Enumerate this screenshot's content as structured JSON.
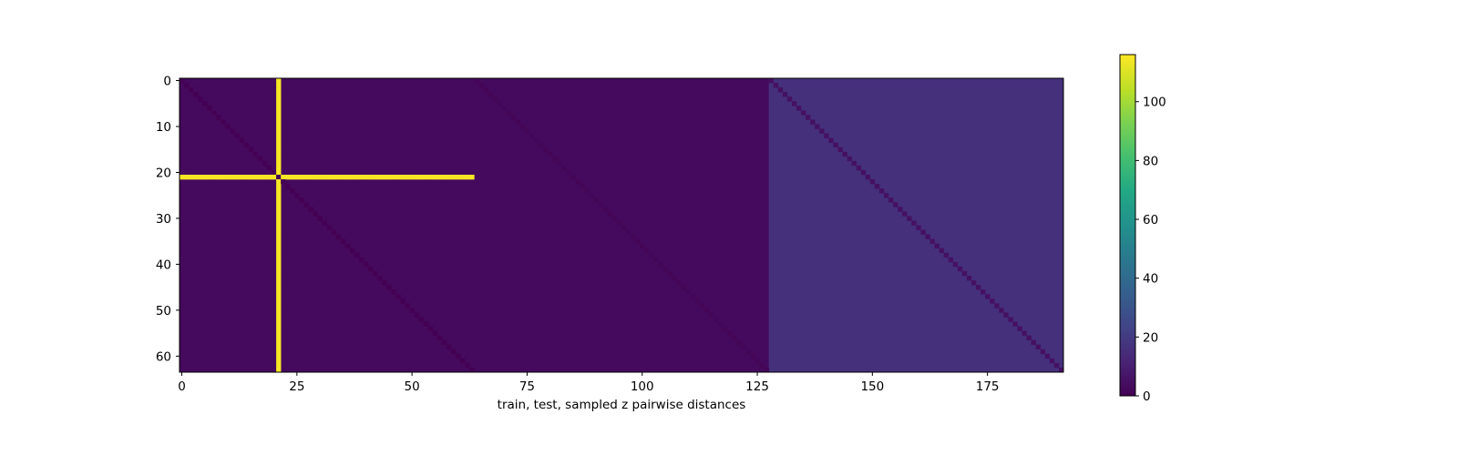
{
  "chart_data": [
    {
      "type": "heatmap",
      "title": "",
      "xlabel": "train, test, sampled z pairwise distances",
      "ylabel": "",
      "shape": [
        64,
        192
      ],
      "xlim": [
        -0.5,
        191.5
      ],
      "ylim": [
        63.5,
        -0.5
      ],
      "x_ticks": [
        0,
        25,
        50,
        75,
        100,
        125,
        150,
        175
      ],
      "y_ticks": [
        0,
        10,
        20,
        30,
        40,
        50,
        60
      ],
      "colormap": "viridis",
      "regions": [
        {
          "name": "train",
          "col_range": [
            0,
            63
          ],
          "typical_value": 3,
          "diagonal_value": 0
        },
        {
          "name": "test",
          "col_range": [
            64,
            127
          ],
          "typical_value": 3,
          "diagonal_value": 1.5
        },
        {
          "name": "sampled z",
          "col_range": [
            128,
            191
          ],
          "typical_value": 16,
          "diagonal_value": 5
        }
      ],
      "outlier": {
        "index": 21,
        "value": 115,
        "row_col_range": [
          0,
          63
        ],
        "self_value": 0
      }
    },
    {
      "type": "colorbar",
      "colormap": "viridis",
      "vmin": 0,
      "vmax": 116,
      "ticks": [
        0,
        20,
        40,
        60,
        80,
        100
      ]
    }
  ]
}
